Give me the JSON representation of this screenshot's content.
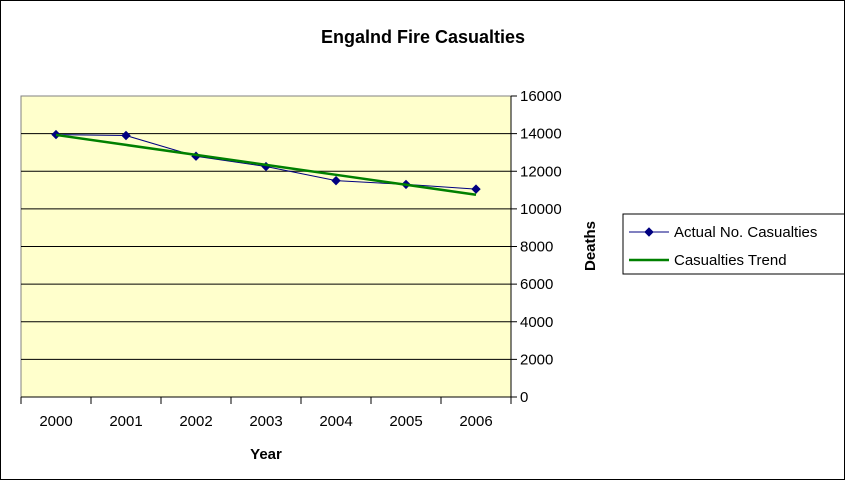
{
  "chart_data": {
    "type": "line",
    "title": "Engalnd Fire Casualties",
    "xlabel": "Year",
    "ylabel": "Deaths",
    "categories": [
      "2000",
      "2001",
      "2002",
      "2003",
      "2004",
      "2005",
      "2006"
    ],
    "ylim": [
      0,
      16000
    ],
    "yticks": [
      0,
      2000,
      4000,
      6000,
      8000,
      10000,
      12000,
      14000,
      16000
    ],
    "y_axis_side": "right",
    "grid": true,
    "plot_background": "#FFFFCC",
    "legend_position": "right",
    "series": [
      {
        "name": "Actual No. Casualties",
        "values": [
          13950,
          13900,
          12800,
          12250,
          11500,
          11300,
          11050
        ],
        "color": "#000080",
        "marker": "diamond"
      },
      {
        "name": "Casualties Trend",
        "values": [
          13930,
          13400,
          12870,
          12340,
          11810,
          11280,
          10750
        ],
        "color": "#008000",
        "marker": "none"
      }
    ]
  }
}
